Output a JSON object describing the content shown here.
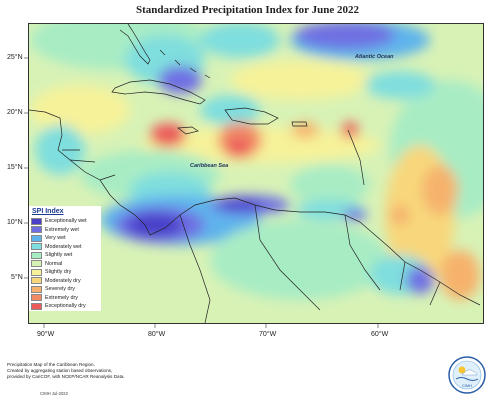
{
  "title": "Standardized Precipitation Index for June 2022",
  "y_axis_labels": [
    "25°N",
    "20°N",
    "15°N",
    "10°N",
    "5°N"
  ],
  "x_axis_labels": [
    "90°W",
    "80°W",
    "70°W",
    "60°W"
  ],
  "map_labels": {
    "atlantic": "Atlantic Ocean",
    "caribbean": "Caribbean Sea"
  },
  "legend": {
    "title": "SPI Index",
    "items": [
      {
        "label": "Exceptionally wet",
        "color": "#4a3fc9"
      },
      {
        "label": "Extremely wet",
        "color": "#6f6fe3"
      },
      {
        "label": "Very wet",
        "color": "#5fb4ec"
      },
      {
        "label": "Moderately wet",
        "color": "#7fdede"
      },
      {
        "label": "Slightly wet",
        "color": "#a8ecc4"
      },
      {
        "label": "Normal",
        "color": "#d8f2b6"
      },
      {
        "label": "Slightly dry",
        "color": "#f6f29a"
      },
      {
        "label": "Moderately dry",
        "color": "#f8d77c"
      },
      {
        "label": "Severely dry",
        "color": "#f6b26c"
      },
      {
        "label": "Extremely dry",
        "color": "#f28a66"
      },
      {
        "label": "Exceptionally dry",
        "color": "#ec5a5a"
      }
    ]
  },
  "footer": {
    "line1": "Precipitation Map of the Caribbean Region.",
    "line2": "Created by aggregating station based observations,",
    "line3": "provided by CariCOF, with NCEP/NCAR Reanalysis Data.",
    "credit": "CIMH Jul-2022"
  },
  "logo_text": "CIMH"
}
